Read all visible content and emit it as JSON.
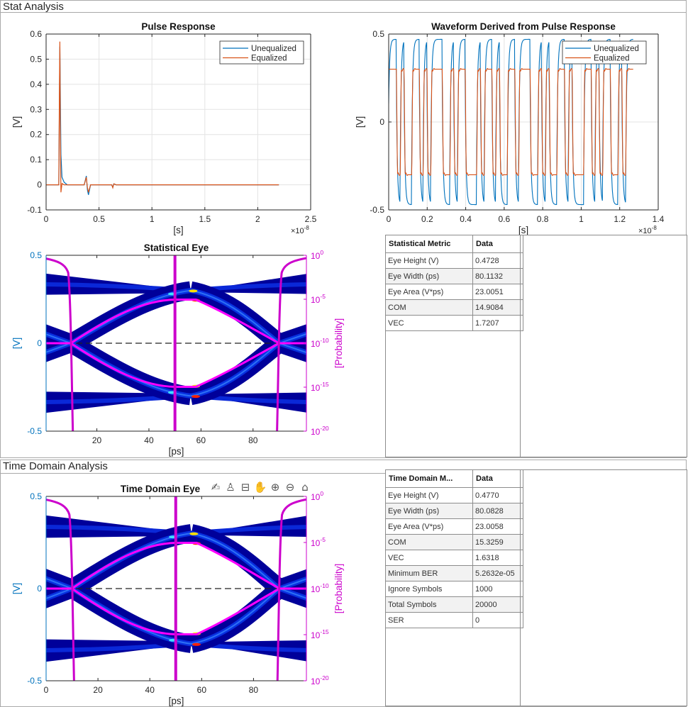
{
  "panels": {
    "stat_title": "Stat Analysis",
    "td_title": "Time Domain Analysis"
  },
  "colors": {
    "unequalized": "#0072BD",
    "equalized": "#D95319",
    "probability": "#CC00CC",
    "contour": "#FF00FF",
    "eye_axis": "#0072BD"
  },
  "toolbar": {
    "icons": [
      "export-icon",
      "brush-icon",
      "datatip-icon",
      "pan-icon",
      "zoom-in-icon",
      "zoom-out-icon",
      "home-icon"
    ],
    "glyphs": [
      "✍",
      "♙",
      "⊟",
      "✋",
      "⊕",
      "⊖",
      "⌂"
    ]
  },
  "chart_data": [
    {
      "id": "pulse",
      "type": "line",
      "title": "Pulse Response",
      "xlabel": "[s]",
      "ylabel": "[V]",
      "x_exponent": "×10",
      "x_exponent_power": "-8",
      "xlim": [
        0,
        2.5
      ],
      "ylim": [
        -0.1,
        0.6
      ],
      "xticks": [
        "0",
        "0.5",
        "1",
        "1.5",
        "2",
        "2.5"
      ],
      "yticks": [
        "-0.1",
        "0",
        "0.1",
        "0.2",
        "0.3",
        "0.4",
        "0.5",
        "0.6"
      ],
      "grid": true,
      "legend": "top-right",
      "series": [
        {
          "name": "Unequalized",
          "x": [
            0,
            0.12,
            0.125,
            0.13,
            0.135,
            0.14,
            0.15,
            0.17,
            0.2,
            0.36,
            0.38,
            0.39,
            0.4,
            0.42,
            0.62,
            0.63,
            0.64,
            0.66,
            2.2
          ],
          "y": [
            0,
            0,
            0.3,
            0.55,
            0.35,
            0.12,
            0.03,
            0.01,
            0,
            0,
            0.035,
            -0.02,
            -0.04,
            0,
            0,
            -0.01,
            0.004,
            0,
            0
          ]
        },
        {
          "name": "Equalized",
          "x": [
            0,
            0.12,
            0.125,
            0.13,
            0.135,
            0.14,
            0.15,
            0.17,
            0.2,
            0.36,
            0.38,
            0.39,
            0.4,
            0.42,
            0.62,
            0.63,
            0.64,
            0.66,
            2.2
          ],
          "y": [
            0,
            0,
            0.35,
            0.57,
            0.2,
            -0.03,
            0.005,
            0,
            0,
            0,
            0.03,
            -0.01,
            -0.03,
            0,
            0,
            -0.012,
            0.004,
            0,
            0
          ]
        }
      ]
    },
    {
      "id": "waveform",
      "type": "line",
      "title": "Waveform Derived from Pulse Response",
      "xlabel": "[s]",
      "ylabel": "[V]",
      "x_exponent": "×10",
      "x_exponent_power": "-8",
      "xlim": [
        0,
        1.4
      ],
      "ylim": [
        -0.5,
        0.5
      ],
      "xticks": [
        "0",
        "0.2",
        "0.4",
        "0.6",
        "0.8",
        "1",
        "1.2",
        "1.4"
      ],
      "yticks": [
        "-0.5",
        "0",
        "0.5"
      ],
      "grid": true,
      "legend": "top-right",
      "time_end": 1.27,
      "levels": {
        "Unequalized": 0.47,
        "Equalized": 0.3
      },
      "symbols": [
        1,
        1,
        -1,
        1,
        -1,
        -1,
        1,
        1,
        -1,
        1,
        -1,
        1,
        1,
        1,
        -1,
        -1,
        1,
        -1,
        1,
        1,
        -1,
        -1,
        -1,
        1,
        -1,
        1,
        1,
        -1,
        1,
        -1,
        -1,
        1,
        1,
        -1,
        1,
        1,
        1,
        -1,
        -1,
        1,
        -1,
        1,
        -1,
        -1,
        1,
        1,
        -1,
        1,
        -1,
        -1,
        -1,
        1,
        1,
        -1,
        1,
        -1,
        1,
        1,
        -1,
        -1,
        1,
        -1,
        1,
        1
      ],
      "series": [
        {
          "name": "Unequalized"
        },
        {
          "name": "Equalized"
        }
      ]
    },
    {
      "id": "stat_eye",
      "type": "heatmap",
      "title": "Statistical Eye",
      "xlabel": "[ps]",
      "ylabel": "[V]",
      "y2label": "[Probability]",
      "xlim": [
        0.5,
        100.5
      ],
      "ylim": [
        -0.5,
        0.5
      ],
      "xticks": [
        "20",
        "40",
        "60",
        "80"
      ],
      "yticks": [
        "-0.5",
        "0",
        "0.5"
      ],
      "y2ticks": [
        "0",
        "-5",
        "-10",
        "-15",
        "-20"
      ],
      "y2base": "10"
    },
    {
      "id": "td_eye",
      "type": "heatmap",
      "title": "Time Domain Eye",
      "xlabel": "[ps]",
      "ylabel": "[V]",
      "y2label": "[Probability]",
      "xlim": [
        0,
        100.4
      ],
      "ylim": [
        -0.5,
        0.5
      ],
      "xticks": [
        "0",
        "20",
        "40",
        "60",
        "80"
      ],
      "yticks": [
        "-0.5",
        "0",
        "0.5"
      ],
      "y2ticks": [
        "0",
        "-5",
        "-10",
        "-15",
        "-20"
      ],
      "y2base": "10"
    }
  ],
  "stat_table": {
    "headers": [
      "Statistical Metric",
      "Data"
    ],
    "rows": [
      [
        "Eye Height (V)",
        "0.4728"
      ],
      [
        "Eye Width (ps)",
        "80.1132"
      ],
      [
        "Eye Area (V*ps)",
        "23.0051"
      ],
      [
        "COM",
        "14.9084"
      ],
      [
        "VEC",
        "1.7207"
      ]
    ]
  },
  "td_table": {
    "headers": [
      "Time Domain M...",
      "Data"
    ],
    "rows": [
      [
        "Eye Height (V)",
        "0.4770"
      ],
      [
        "Eye Width (ps)",
        "80.0828"
      ],
      [
        "Eye Area (V*ps)",
        "23.0058"
      ],
      [
        "COM",
        "15.3259"
      ],
      [
        "VEC",
        "1.6318"
      ],
      [
        "Minimum BER",
        "5.2632e-05"
      ],
      [
        "Ignore Symbols",
        "1000"
      ],
      [
        "Total Symbols",
        "20000"
      ],
      [
        "SER",
        "0"
      ]
    ]
  }
}
